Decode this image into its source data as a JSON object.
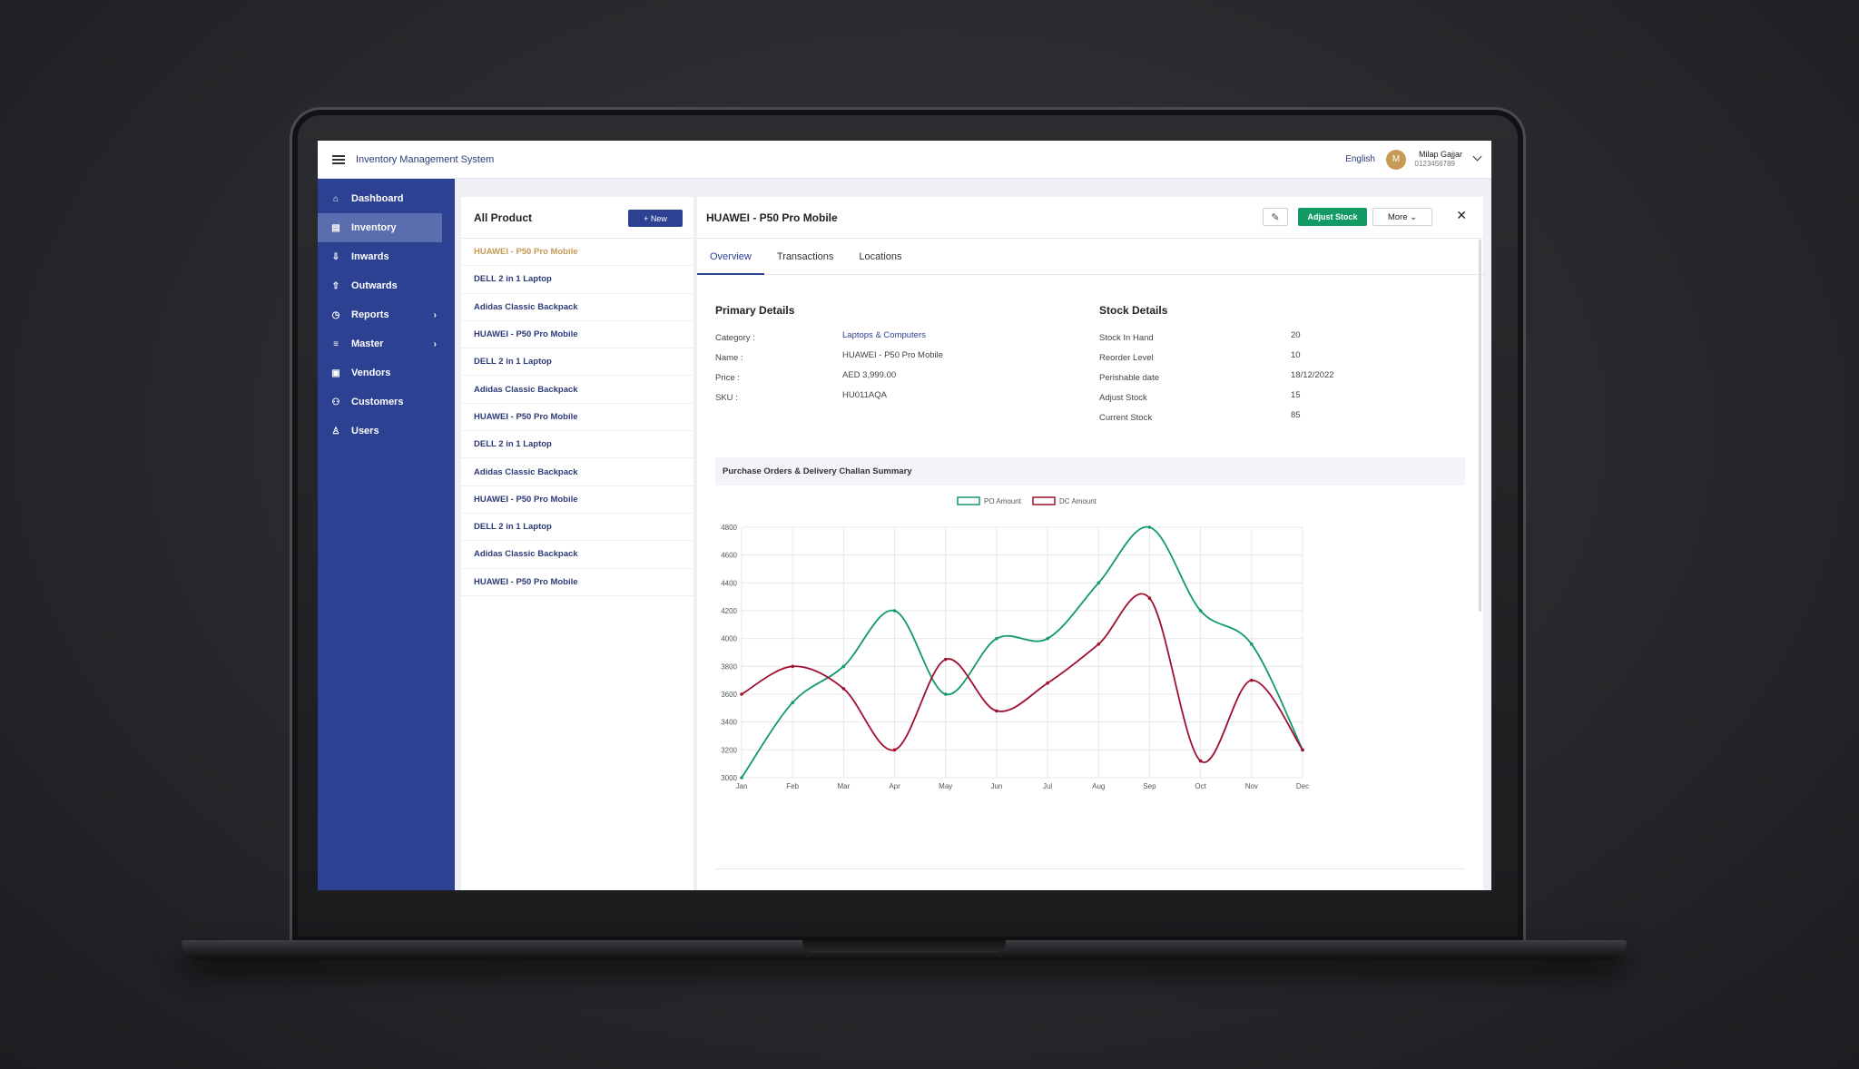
{
  "app": {
    "title": "Inventory Management System"
  },
  "topbar": {
    "language": "English",
    "user": {
      "initial": "M",
      "name": "Milap Gajjar",
      "id": "0123456789"
    }
  },
  "sidebar": {
    "items": [
      {
        "label": "Dashboard",
        "icon": "home-icon",
        "active": false
      },
      {
        "label": "Inventory",
        "icon": "box-icon",
        "active": true
      },
      {
        "label": "Inwards",
        "icon": "inbox-icon",
        "active": false
      },
      {
        "label": "Outwards",
        "icon": "outbox-icon",
        "active": false
      },
      {
        "label": "Reports",
        "icon": "clock-icon",
        "active": false,
        "submenu": true
      },
      {
        "label": "Master",
        "icon": "list-icon",
        "active": false,
        "submenu": true
      },
      {
        "label": "Vendors",
        "icon": "store-icon",
        "active": false
      },
      {
        "label": "Customers",
        "icon": "users-icon",
        "active": false
      },
      {
        "label": "Users",
        "icon": "user-icon",
        "active": false
      }
    ]
  },
  "product_list": {
    "title": "All Product",
    "new_label": "+ New",
    "items": [
      "HUAWEI - P50 Pro Mobile",
      "DELL 2 in 1 Laptop",
      "Adidas Classic Backpack",
      "HUAWEI - P50 Pro Mobile",
      "DELL 2 in 1 Laptop",
      "Adidas Classic Backpack",
      "HUAWEI - P50 Pro Mobile",
      "DELL 2 in 1 Laptop",
      "Adidas Classic Backpack",
      "HUAWEI - P50 Pro Mobile",
      "DELL 2 in 1 Laptop",
      "Adidas Classic Backpack",
      "HUAWEI - P50 Pro Mobile"
    ]
  },
  "detail": {
    "title": "HUAWEI - P50 Pro Mobile",
    "adjust_label": "Adjust Stock",
    "more_label": "More",
    "tabs": [
      "Overview",
      "Transactions",
      "Locations"
    ],
    "primary": {
      "title": "Primary Details",
      "rows": [
        {
          "label": "Category :",
          "value": "Laptops & Computers"
        },
        {
          "label": "Name :",
          "value": "HUAWEI - P50 Pro Mobile"
        },
        {
          "label": "Price :",
          "value": "AED 3,999.00"
        },
        {
          "label": "SKU :",
          "value": "HU011AQA"
        }
      ]
    },
    "stock": {
      "title": "Stock Details",
      "rows": [
        {
          "label": "Stock In Hand",
          "value": "20"
        },
        {
          "label": "Reorder Level",
          "value": "10"
        },
        {
          "label": "Perishable date",
          "value": "18/12/2022"
        },
        {
          "label": "Adjust Stock",
          "value": "15"
        },
        {
          "label": "Current Stock",
          "value": "85"
        }
      ]
    },
    "chart_title": "Purchase Orders & Delivery Challan Summary"
  },
  "colors": {
    "sidebar": "#2d4193",
    "po_series": "#129a6a",
    "dc_series": "#a0102e",
    "accent_gold": "#c49a54"
  },
  "chart_data": {
    "type": "line",
    "categories": [
      "Jan",
      "Feb",
      "Mar",
      "Apr",
      "May",
      "Jun",
      "Jul",
      "Aug",
      "Sep",
      "Oct",
      "Nov",
      "Dec"
    ],
    "ylim": [
      3000,
      4800
    ],
    "yticks": [
      3000,
      3200,
      3400,
      3600,
      3800,
      4000,
      4200,
      4400,
      4600,
      4800
    ],
    "legend_position": "top",
    "grid": true,
    "series": [
      {
        "name": "PO Amount",
        "values": [
          3000,
          3540,
          3800,
          4200,
          3600,
          4000,
          4000,
          4400,
          4800,
          4200,
          3960,
          3200
        ]
      },
      {
        "name": "DC Amount",
        "values": [
          3600,
          3800,
          3640,
          3200,
          3850,
          3480,
          3680,
          3960,
          4290,
          3120,
          3700,
          3200
        ]
      }
    ]
  }
}
